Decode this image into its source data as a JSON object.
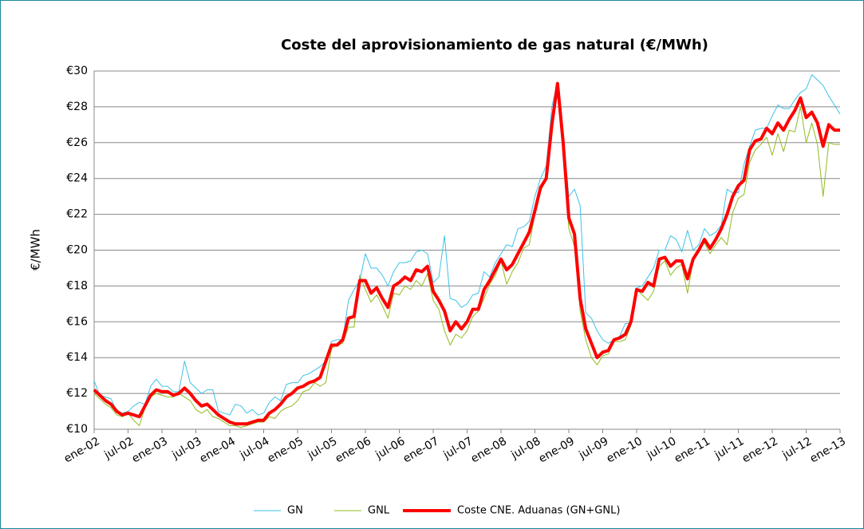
{
  "chart_data": {
    "type": "line",
    "title": "Coste del aprovisionamiento  de gas natural (€/MWh)",
    "y_label": "€/MWh",
    "categories": [
      "ene-02",
      null,
      null,
      null,
      null,
      null,
      "jul-02",
      null,
      null,
      null,
      null,
      null,
      "ene-03",
      null,
      null,
      null,
      null,
      null,
      "jul-03",
      null,
      null,
      null,
      null,
      null,
      "ene-04",
      null,
      null,
      null,
      null,
      null,
      "jul-04",
      null,
      null,
      null,
      null,
      null,
      "ene-05",
      null,
      null,
      null,
      null,
      null,
      "jul-05",
      null,
      null,
      null,
      null,
      null,
      "ene-06",
      null,
      null,
      null,
      null,
      null,
      "jul-06",
      null,
      null,
      null,
      null,
      null,
      "ene-07",
      null,
      null,
      null,
      null,
      null,
      "jul-07",
      null,
      null,
      null,
      null,
      null,
      "ene-08",
      null,
      null,
      null,
      null,
      null,
      "jul-08",
      null,
      null,
      null,
      null,
      null,
      "ene-09",
      null,
      null,
      null,
      null,
      null,
      "jul-09",
      null,
      null,
      null,
      null,
      null,
      "ene-10",
      null,
      null,
      null,
      null,
      null,
      "jul-10",
      null,
      null,
      null,
      null,
      null,
      "ene-11",
      null,
      null,
      null,
      null,
      null,
      "jul-11",
      null,
      null,
      null,
      null,
      null,
      "ene-12",
      null,
      null,
      null,
      null,
      null,
      "jul-12",
      null,
      null,
      null,
      null,
      null,
      "ene-13"
    ],
    "series": [
      {
        "name": "GN",
        "color": "#3ec1e8",
        "width": 1,
        "values": [
          12.7,
          11.9,
          11.8,
          11.7,
          11.0,
          10.9,
          11.0,
          11.3,
          11.5,
          11.4,
          12.4,
          12.8,
          12.4,
          12.4,
          12.1,
          12.1,
          13.8,
          12.6,
          12.3,
          12.0,
          12.2,
          12.2,
          11.0,
          10.9,
          10.8,
          11.4,
          11.3,
          10.9,
          11.1,
          10.8,
          10.9,
          11.5,
          11.8,
          11.6,
          12.5,
          12.6,
          12.6,
          13.0,
          13.1,
          13.3,
          13.5,
          13.8,
          14.9,
          15.0,
          15.0,
          17.2,
          17.8,
          18.3,
          19.8,
          19.0,
          19.0,
          18.6,
          18.0,
          18.8,
          19.3,
          19.3,
          19.4,
          19.9,
          20.0,
          19.8,
          18.2,
          18.5,
          20.8,
          17.3,
          17.2,
          16.8,
          17.0,
          17.5,
          17.6,
          18.8,
          18.5,
          19.3,
          19.8,
          20.3,
          20.2,
          21.2,
          21.3,
          21.6,
          23.0,
          24.0,
          24.7,
          28.0,
          29.4,
          26.5,
          23.0,
          23.4,
          22.5,
          16.5,
          16.2,
          15.5,
          15.0,
          14.8,
          15.0,
          15.2,
          15.9,
          15.9,
          17.9,
          18.0,
          18.5,
          19.0,
          20.0,
          20.0,
          20.8,
          20.6,
          19.9,
          21.1,
          20.0,
          20.3,
          21.2,
          20.8,
          21.0,
          21.4,
          23.4,
          23.2,
          23.2,
          24.8,
          25.8,
          26.7,
          26.8,
          26.8,
          27.5,
          28.1,
          27.9,
          27.9,
          28.4,
          28.8,
          29.0,
          29.8,
          29.5,
          29.2,
          28.6,
          28.1,
          27.6
        ]
      },
      {
        "name": "GNL",
        "color": "#8fbc1f",
        "width": 1,
        "values": [
          12.0,
          11.7,
          11.4,
          11.2,
          10.8,
          10.7,
          10.9,
          10.5,
          10.2,
          11.2,
          11.8,
          12.0,
          11.9,
          11.8,
          11.8,
          12.0,
          11.8,
          11.6,
          11.1,
          10.9,
          11.1,
          10.7,
          10.6,
          10.4,
          10.2,
          10.2,
          10.1,
          10.2,
          10.3,
          10.4,
          10.4,
          10.7,
          10.6,
          11.0,
          11.2,
          11.3,
          11.6,
          12.1,
          12.2,
          12.6,
          12.4,
          12.6,
          14.5,
          14.7,
          14.8,
          15.7,
          15.7,
          18.6,
          17.8,
          17.1,
          17.5,
          16.9,
          16.2,
          17.6,
          17.5,
          18.0,
          17.8,
          18.3,
          18.0,
          18.7,
          17.2,
          16.7,
          15.5,
          14.7,
          15.3,
          15.1,
          15.5,
          16.3,
          16.6,
          17.3,
          18.1,
          18.6,
          19.4,
          18.1,
          18.8,
          19.3,
          20.1,
          20.3,
          22.0,
          23.3,
          23.9,
          26.5,
          29.3,
          25.4,
          21.2,
          20.2,
          16.6,
          15.0,
          14.0,
          13.6,
          14.1,
          14.2,
          14.9,
          14.9,
          15.0,
          15.8,
          17.8,
          17.5,
          17.2,
          17.7,
          19.1,
          19.4,
          18.6,
          19.0,
          19.2,
          17.6,
          19.4,
          20.1,
          20.4,
          19.8,
          20.3,
          20.7,
          20.3,
          22.1,
          22.9,
          23.1,
          24.9,
          25.6,
          25.9,
          26.3,
          25.3,
          26.5,
          25.5,
          26.7,
          26.6,
          28.0,
          26.0,
          27.1,
          25.9,
          23.0,
          26.0,
          25.9,
          25.9
        ]
      },
      {
        "name": "Coste CNE. Aduanas (GN+GNL)",
        "color": "#ff0000",
        "width": 4,
        "values": [
          12.2,
          11.9,
          11.6,
          11.4,
          11.0,
          10.8,
          10.9,
          10.8,
          10.7,
          11.3,
          11.9,
          12.2,
          12.1,
          12.1,
          11.9,
          12.0,
          12.3,
          12.0,
          11.6,
          11.3,
          11.4,
          11.1,
          10.8,
          10.6,
          10.4,
          10.3,
          10.3,
          10.3,
          10.4,
          10.5,
          10.5,
          10.9,
          11.1,
          11.4,
          11.8,
          12.0,
          12.3,
          12.4,
          12.6,
          12.7,
          12.9,
          13.8,
          14.7,
          14.7,
          15.0,
          16.2,
          16.3,
          18.3,
          18.3,
          17.6,
          17.9,
          17.3,
          16.8,
          18.0,
          18.2,
          18.5,
          18.3,
          18.9,
          18.8,
          19.1,
          17.7,
          17.2,
          16.6,
          15.5,
          16.0,
          15.6,
          16.0,
          16.7,
          16.7,
          17.8,
          18.3,
          18.9,
          19.5,
          18.9,
          19.2,
          19.8,
          20.4,
          21.0,
          22.2,
          23.5,
          24.0,
          27.0,
          29.3,
          26.0,
          21.8,
          20.9,
          17.3,
          15.6,
          14.8,
          14.0,
          14.3,
          14.4,
          15.0,
          15.1,
          15.3,
          16.0,
          17.8,
          17.7,
          18.2,
          18.0,
          19.5,
          19.6,
          19.1,
          19.4,
          19.4,
          18.4,
          19.5,
          20.0,
          20.6,
          20.1,
          20.6,
          21.2,
          22.0,
          23.0,
          23.6,
          23.9,
          25.6,
          26.1,
          26.2,
          26.8,
          26.5,
          27.1,
          26.7,
          27.3,
          27.8,
          28.5,
          27.4,
          27.7,
          27.1,
          25.8,
          27.0,
          26.7,
          26.7
        ]
      }
    ],
    "ylim": [
      10,
      30
    ],
    "yticks": [
      {
        "value": 10,
        "label": "€10"
      },
      {
        "value": 12,
        "label": "€12"
      },
      {
        "value": 14,
        "label": "€14"
      },
      {
        "value": 16,
        "label": "€16"
      },
      {
        "value": 18,
        "label": "€18"
      },
      {
        "value": 20,
        "label": "€20"
      },
      {
        "value": 22,
        "label": "€22"
      },
      {
        "value": 24,
        "label": "€24"
      },
      {
        "value": 26,
        "label": "€26"
      },
      {
        "value": 28,
        "label": "€28"
      },
      {
        "value": 30,
        "label": "€30"
      }
    ],
    "grid": true,
    "legend": "bottom"
  }
}
